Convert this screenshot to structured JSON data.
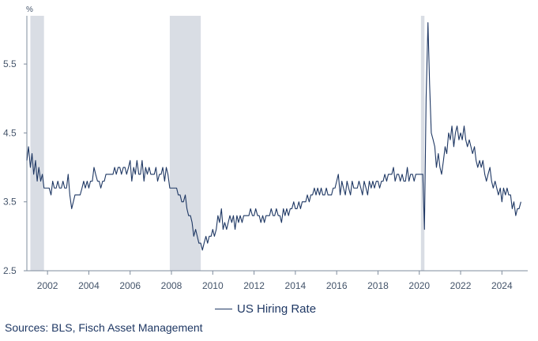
{
  "chart_data": {
    "type": "line",
    "title": "",
    "unit_label": "%",
    "xlabel": "",
    "ylabel": "",
    "xlim": [
      2001.0,
      2025.25
    ],
    "ylim": [
      2.5,
      6.2
    ],
    "y_ticks": [
      2.5,
      3.5,
      4.5,
      5.5
    ],
    "y_tick_labels": [
      "2.5",
      "3.5",
      "4.5",
      "5.5"
    ],
    "x_ticks": [
      2002,
      2004,
      2006,
      2008,
      2010,
      2012,
      2014,
      2016,
      2018,
      2020,
      2022,
      2024
    ],
    "x_tick_labels": [
      "2002",
      "2004",
      "2006",
      "2008",
      "2010",
      "2012",
      "2014",
      "2016",
      "2018",
      "2020",
      "2022",
      "2024"
    ],
    "grid": false,
    "legend_position": "bottom-center",
    "recessions": [
      {
        "start": 2001.17,
        "end": 2001.83
      },
      {
        "start": 2007.92,
        "end": 2009.42
      },
      {
        "start": 2020.08,
        "end": 2020.25
      }
    ],
    "recession_color": "#d9dde4",
    "series": [
      {
        "name": "US Hiring Rate",
        "color": "#1f3864",
        "points": [
          [
            2001.0,
            4.1
          ],
          [
            2001.08,
            4.3
          ],
          [
            2001.17,
            4.0
          ],
          [
            2001.25,
            4.2
          ],
          [
            2001.33,
            3.9
          ],
          [
            2001.42,
            4.1
          ],
          [
            2001.5,
            3.8
          ],
          [
            2001.58,
            4.0
          ],
          [
            2001.67,
            3.8
          ],
          [
            2001.75,
            3.9
          ],
          [
            2001.83,
            3.7
          ],
          [
            2001.92,
            3.7
          ],
          [
            2002.0,
            3.7
          ],
          [
            2002.08,
            3.7
          ],
          [
            2002.17,
            3.6
          ],
          [
            2002.25,
            3.8
          ],
          [
            2002.33,
            3.7
          ],
          [
            2002.42,
            3.7
          ],
          [
            2002.5,
            3.8
          ],
          [
            2002.58,
            3.7
          ],
          [
            2002.67,
            3.7
          ],
          [
            2002.75,
            3.8
          ],
          [
            2002.83,
            3.7
          ],
          [
            2002.92,
            3.7
          ],
          [
            2003.0,
            3.9
          ],
          [
            2003.08,
            3.6
          ],
          [
            2003.17,
            3.4
          ],
          [
            2003.25,
            3.5
          ],
          [
            2003.33,
            3.6
          ],
          [
            2003.42,
            3.6
          ],
          [
            2003.5,
            3.6
          ],
          [
            2003.58,
            3.6
          ],
          [
            2003.67,
            3.7
          ],
          [
            2003.75,
            3.8
          ],
          [
            2003.83,
            3.7
          ],
          [
            2003.92,
            3.8
          ],
          [
            2004.0,
            3.7
          ],
          [
            2004.08,
            3.8
          ],
          [
            2004.17,
            3.8
          ],
          [
            2004.25,
            4.0
          ],
          [
            2004.33,
            3.9
          ],
          [
            2004.42,
            3.8
          ],
          [
            2004.5,
            3.8
          ],
          [
            2004.58,
            3.7
          ],
          [
            2004.67,
            3.8
          ],
          [
            2004.75,
            3.8
          ],
          [
            2004.83,
            3.9
          ],
          [
            2004.92,
            3.9
          ],
          [
            2005.0,
            3.9
          ],
          [
            2005.08,
            3.9
          ],
          [
            2005.17,
            3.9
          ],
          [
            2005.25,
            4.0
          ],
          [
            2005.33,
            3.9
          ],
          [
            2005.42,
            4.0
          ],
          [
            2005.5,
            4.0
          ],
          [
            2005.58,
            3.9
          ],
          [
            2005.67,
            4.0
          ],
          [
            2005.75,
            4.0
          ],
          [
            2005.83,
            3.9
          ],
          [
            2005.92,
            4.0
          ],
          [
            2006.0,
            4.1
          ],
          [
            2006.08,
            3.8
          ],
          [
            2006.17,
            4.0
          ],
          [
            2006.25,
            3.9
          ],
          [
            2006.33,
            4.1
          ],
          [
            2006.42,
            3.9
          ],
          [
            2006.5,
            3.9
          ],
          [
            2006.58,
            4.1
          ],
          [
            2006.67,
            3.8
          ],
          [
            2006.75,
            4.0
          ],
          [
            2006.83,
            3.9
          ],
          [
            2006.92,
            4.0
          ],
          [
            2007.0,
            3.9
          ],
          [
            2007.08,
            3.9
          ],
          [
            2007.17,
            3.9
          ],
          [
            2007.25,
            4.0
          ],
          [
            2007.33,
            3.8
          ],
          [
            2007.42,
            3.9
          ],
          [
            2007.5,
            3.9
          ],
          [
            2007.58,
            4.0
          ],
          [
            2007.67,
            3.8
          ],
          [
            2007.75,
            4.0
          ],
          [
            2007.83,
            3.9
          ],
          [
            2007.92,
            3.7
          ],
          [
            2008.0,
            3.7
          ],
          [
            2008.08,
            3.7
          ],
          [
            2008.17,
            3.7
          ],
          [
            2008.25,
            3.7
          ],
          [
            2008.33,
            3.6
          ],
          [
            2008.42,
            3.6
          ],
          [
            2008.5,
            3.5
          ],
          [
            2008.58,
            3.5
          ],
          [
            2008.67,
            3.6
          ],
          [
            2008.75,
            3.4
          ],
          [
            2008.83,
            3.3
          ],
          [
            2008.92,
            3.3
          ],
          [
            2009.0,
            3.2
          ],
          [
            2009.08,
            3.0
          ],
          [
            2009.17,
            3.1
          ],
          [
            2009.25,
            3.0
          ],
          [
            2009.33,
            2.9
          ],
          [
            2009.42,
            2.9
          ],
          [
            2009.5,
            2.8
          ],
          [
            2009.58,
            2.9
          ],
          [
            2009.67,
            3.0
          ],
          [
            2009.75,
            2.9
          ],
          [
            2009.83,
            3.0
          ],
          [
            2009.92,
            3.0
          ],
          [
            2010.0,
            3.1
          ],
          [
            2010.08,
            3.0
          ],
          [
            2010.17,
            3.1
          ],
          [
            2010.25,
            3.3
          ],
          [
            2010.33,
            3.2
          ],
          [
            2010.42,
            3.4
          ],
          [
            2010.5,
            3.1
          ],
          [
            2010.58,
            3.2
          ],
          [
            2010.67,
            3.1
          ],
          [
            2010.75,
            3.2
          ],
          [
            2010.83,
            3.3
          ],
          [
            2010.92,
            3.2
          ],
          [
            2011.0,
            3.3
          ],
          [
            2011.08,
            3.1
          ],
          [
            2011.17,
            3.3
          ],
          [
            2011.25,
            3.2
          ],
          [
            2011.33,
            3.3
          ],
          [
            2011.42,
            3.2
          ],
          [
            2011.5,
            3.3
          ],
          [
            2011.58,
            3.3
          ],
          [
            2011.67,
            3.3
          ],
          [
            2011.75,
            3.3
          ],
          [
            2011.83,
            3.4
          ],
          [
            2011.92,
            3.3
          ],
          [
            2012.0,
            3.3
          ],
          [
            2012.08,
            3.4
          ],
          [
            2012.17,
            3.3
          ],
          [
            2012.25,
            3.3
          ],
          [
            2012.33,
            3.2
          ],
          [
            2012.42,
            3.3
          ],
          [
            2012.5,
            3.2
          ],
          [
            2012.58,
            3.3
          ],
          [
            2012.67,
            3.3
          ],
          [
            2012.75,
            3.3
          ],
          [
            2012.83,
            3.4
          ],
          [
            2012.92,
            3.3
          ],
          [
            2013.0,
            3.3
          ],
          [
            2013.08,
            3.4
          ],
          [
            2013.17,
            3.3
          ],
          [
            2013.25,
            3.3
          ],
          [
            2013.33,
            3.2
          ],
          [
            2013.42,
            3.4
          ],
          [
            2013.5,
            3.3
          ],
          [
            2013.58,
            3.4
          ],
          [
            2013.67,
            3.3
          ],
          [
            2013.75,
            3.4
          ],
          [
            2013.83,
            3.4
          ],
          [
            2013.92,
            3.5
          ],
          [
            2014.0,
            3.4
          ],
          [
            2014.08,
            3.4
          ],
          [
            2014.17,
            3.5
          ],
          [
            2014.25,
            3.4
          ],
          [
            2014.33,
            3.5
          ],
          [
            2014.42,
            3.5
          ],
          [
            2014.5,
            3.5
          ],
          [
            2014.58,
            3.6
          ],
          [
            2014.67,
            3.5
          ],
          [
            2014.75,
            3.6
          ],
          [
            2014.83,
            3.6
          ],
          [
            2014.92,
            3.7
          ],
          [
            2015.0,
            3.6
          ],
          [
            2015.08,
            3.7
          ],
          [
            2015.17,
            3.6
          ],
          [
            2015.25,
            3.7
          ],
          [
            2015.33,
            3.6
          ],
          [
            2015.42,
            3.6
          ],
          [
            2015.5,
            3.7
          ],
          [
            2015.58,
            3.6
          ],
          [
            2015.67,
            3.6
          ],
          [
            2015.75,
            3.6
          ],
          [
            2015.83,
            3.7
          ],
          [
            2015.92,
            3.7
          ],
          [
            2016.0,
            3.8
          ],
          [
            2016.08,
            3.9
          ],
          [
            2016.17,
            3.6
          ],
          [
            2016.25,
            3.8
          ],
          [
            2016.33,
            3.7
          ],
          [
            2016.42,
            3.6
          ],
          [
            2016.5,
            3.8
          ],
          [
            2016.58,
            3.7
          ],
          [
            2016.67,
            3.6
          ],
          [
            2016.75,
            3.8
          ],
          [
            2016.83,
            3.7
          ],
          [
            2016.92,
            3.7
          ],
          [
            2017.0,
            3.7
          ],
          [
            2017.08,
            3.8
          ],
          [
            2017.17,
            3.7
          ],
          [
            2017.25,
            3.6
          ],
          [
            2017.33,
            3.8
          ],
          [
            2017.42,
            3.7
          ],
          [
            2017.5,
            3.6
          ],
          [
            2017.58,
            3.8
          ],
          [
            2017.67,
            3.7
          ],
          [
            2017.75,
            3.8
          ],
          [
            2017.83,
            3.7
          ],
          [
            2017.92,
            3.8
          ],
          [
            2018.0,
            3.8
          ],
          [
            2018.08,
            3.7
          ],
          [
            2018.17,
            3.8
          ],
          [
            2018.25,
            3.8
          ],
          [
            2018.33,
            3.9
          ],
          [
            2018.42,
            3.8
          ],
          [
            2018.5,
            3.9
          ],
          [
            2018.58,
            3.9
          ],
          [
            2018.67,
            3.9
          ],
          [
            2018.75,
            4.0
          ],
          [
            2018.83,
            3.8
          ],
          [
            2018.92,
            3.9
          ],
          [
            2019.0,
            3.9
          ],
          [
            2019.08,
            3.8
          ],
          [
            2019.17,
            3.9
          ],
          [
            2019.25,
            3.8
          ],
          [
            2019.33,
            3.8
          ],
          [
            2019.42,
            4.0
          ],
          [
            2019.5,
            3.8
          ],
          [
            2019.58,
            3.9
          ],
          [
            2019.67,
            3.9
          ],
          [
            2019.75,
            3.8
          ],
          [
            2019.83,
            3.9
          ],
          [
            2019.92,
            3.9
          ],
          [
            2020.0,
            3.9
          ],
          [
            2020.08,
            3.9
          ],
          [
            2020.17,
            3.9
          ],
          [
            2020.25,
            3.1
          ],
          [
            2020.33,
            5.0
          ],
          [
            2020.42,
            6.1
          ],
          [
            2020.5,
            5.2
          ],
          [
            2020.58,
            4.5
          ],
          [
            2020.67,
            4.4
          ],
          [
            2020.75,
            4.3
          ],
          [
            2020.83,
            4.0
          ],
          [
            2020.92,
            4.2
          ],
          [
            2021.0,
            4.0
          ],
          [
            2021.08,
            3.9
          ],
          [
            2021.17,
            4.1
          ],
          [
            2021.25,
            4.3
          ],
          [
            2021.33,
            4.2
          ],
          [
            2021.42,
            4.5
          ],
          [
            2021.5,
            4.4
          ],
          [
            2021.58,
            4.6
          ],
          [
            2021.67,
            4.3
          ],
          [
            2021.75,
            4.5
          ],
          [
            2021.83,
            4.6
          ],
          [
            2021.92,
            4.4
          ],
          [
            2022.0,
            4.5
          ],
          [
            2022.08,
            4.4
          ],
          [
            2022.17,
            4.6
          ],
          [
            2022.25,
            4.4
          ],
          [
            2022.33,
            4.3
          ],
          [
            2022.42,
            4.4
          ],
          [
            2022.5,
            4.3
          ],
          [
            2022.58,
            4.2
          ],
          [
            2022.67,
            4.3
          ],
          [
            2022.75,
            4.1
          ],
          [
            2022.83,
            4.0
          ],
          [
            2022.92,
            4.1
          ],
          [
            2023.0,
            4.0
          ],
          [
            2023.08,
            4.1
          ],
          [
            2023.17,
            3.9
          ],
          [
            2023.25,
            3.8
          ],
          [
            2023.33,
            3.9
          ],
          [
            2023.42,
            4.0
          ],
          [
            2023.5,
            3.8
          ],
          [
            2023.58,
            3.7
          ],
          [
            2023.67,
            3.8
          ],
          [
            2023.75,
            3.7
          ],
          [
            2023.83,
            3.6
          ],
          [
            2023.92,
            3.7
          ],
          [
            2024.0,
            3.5
          ],
          [
            2024.08,
            3.7
          ],
          [
            2024.17,
            3.6
          ],
          [
            2024.25,
            3.7
          ],
          [
            2024.33,
            3.6
          ],
          [
            2024.42,
            3.6
          ],
          [
            2024.5,
            3.4
          ],
          [
            2024.58,
            3.5
          ],
          [
            2024.67,
            3.3
          ],
          [
            2024.75,
            3.4
          ],
          [
            2024.83,
            3.4
          ],
          [
            2024.92,
            3.5
          ]
        ]
      }
    ]
  },
  "legend": {
    "label": "US Hiring Rate"
  },
  "source": {
    "text": "Sources: BLS, Fisch Asset Management"
  }
}
